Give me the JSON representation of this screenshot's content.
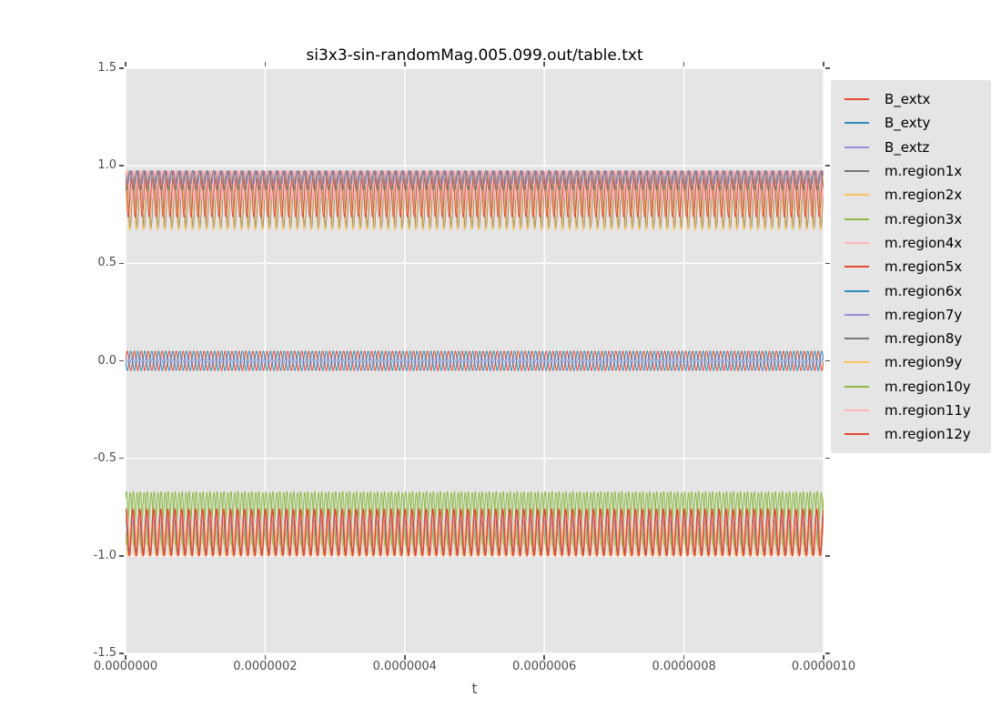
{
  "figure": {
    "background": "#ffffff",
    "panel_background": "#e5e5e5",
    "gridline_color": "#ffffff",
    "tick_color": "#555555",
    "tick_label_color": "#4d4d4d",
    "text_color": "#000000"
  },
  "chart_data": {
    "type": "line",
    "title": "si3x3-sin-randomMag.005.099.out/table.txt",
    "xlabel": "t",
    "ylabel": "",
    "xlim": [
      0,
      1e-06
    ],
    "ylim": [
      -1.5,
      1.5
    ],
    "grid": true,
    "legend_position": "right",
    "waveform": "sine",
    "cycles_shown": 100,
    "x_ticks": [
      {
        "value": 0,
        "label": "0.0000000"
      },
      {
        "value": 2e-07,
        "label": "0.0000002"
      },
      {
        "value": 4e-07,
        "label": "0.0000004"
      },
      {
        "value": 6e-07,
        "label": "0.0000006"
      },
      {
        "value": 8e-07,
        "label": "0.0000008"
      },
      {
        "value": 1e-06,
        "label": "0.0000010"
      }
    ],
    "y_ticks": [
      {
        "value": 1.5,
        "label": "1.5"
      },
      {
        "value": 1.0,
        "label": "1.0"
      },
      {
        "value": 0.5,
        "label": "0.5"
      },
      {
        "value": 0.0,
        "label": "0.0"
      },
      {
        "value": -0.5,
        "label": "-0.5"
      },
      {
        "value": -1.0,
        "label": "-1.0"
      },
      {
        "value": -1.5,
        "label": "-1.5"
      }
    ],
    "series": [
      {
        "name": "B_extx",
        "color": "#E24A33",
        "offset": 0.0,
        "amplitude": 0.05,
        "phase": 0.0,
        "linewidth": 1.0
      },
      {
        "name": "B_exty",
        "color": "#348ABD",
        "offset": 0.0,
        "amplitude": 0.05,
        "phase": 3.14,
        "linewidth": 1.0
      },
      {
        "name": "B_extz",
        "color": "#988ED5",
        "offset": 0.0,
        "amplitude": 0.013,
        "phase": 1.6,
        "linewidth": 1.0
      },
      {
        "name": "m.region1x",
        "color": "#777777",
        "offset": 0.825,
        "amplitude": 0.145,
        "phase": 0.7,
        "linewidth": 1.1
      },
      {
        "name": "m.region2x",
        "color": "#FBC15E",
        "offset": 0.82,
        "amplitude": 0.15,
        "phase": 1.2,
        "linewidth": 1.0
      },
      {
        "name": "m.region3x",
        "color": "#8EBA42",
        "offset": -0.815,
        "amplitude": 0.145,
        "phase": 0.9,
        "linewidth": 1.0
      },
      {
        "name": "m.region4x",
        "color": "#FFB5B8",
        "offset": 0.9,
        "amplitude": 0.075,
        "phase": 0.1,
        "linewidth": 1.6
      },
      {
        "name": "m.region5x",
        "color": "#E24A33",
        "offset": 0.855,
        "amplitude": 0.118,
        "phase": 2.3,
        "linewidth": 1.0
      },
      {
        "name": "m.region6x",
        "color": "#348ABD",
        "offset": -0.885,
        "amplitude": 0.105,
        "phase": 1.9,
        "linewidth": 1.0
      },
      {
        "name": "m.region7y",
        "color": "#988ED5",
        "offset": 0.94,
        "amplitude": 0.035,
        "phase": 2.8,
        "linewidth": 1.0
      },
      {
        "name": "m.region8y",
        "color": "#777777",
        "offset": 0.925,
        "amplitude": 0.05,
        "phase": 4.1,
        "linewidth": 1.0
      },
      {
        "name": "m.region9y",
        "color": "#FBC15E",
        "offset": -0.915,
        "amplitude": 0.085,
        "phase": 2.7,
        "linewidth": 1.0
      },
      {
        "name": "m.region10y",
        "color": "#8EBA42",
        "offset": -0.81,
        "amplitude": 0.135,
        "phase": 3.7,
        "linewidth": 1.0
      },
      {
        "name": "m.region11y",
        "color": "#FFB5B8",
        "offset": -0.87,
        "amplitude": 0.09,
        "phase": 0.5,
        "linewidth": 1.0
      },
      {
        "name": "m.region12y",
        "color": "#E24A33",
        "offset": -0.88,
        "amplitude": 0.12,
        "phase": 1.3,
        "linewidth": 1.4
      }
    ]
  }
}
